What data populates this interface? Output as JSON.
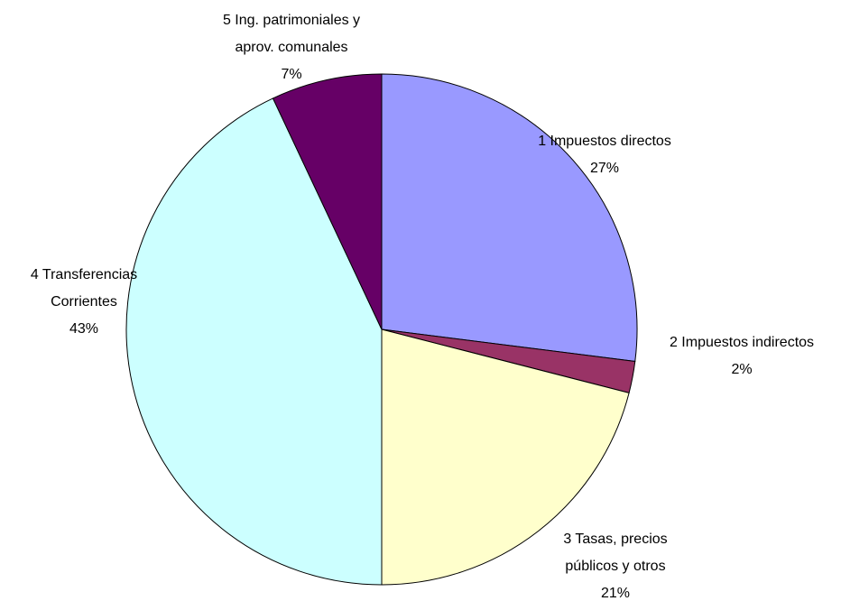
{
  "chart_data": {
    "type": "pie",
    "categories": [
      "1 Impuestos directos",
      "2 Impuestos indirectos",
      "3 Tasas, precios públicos y otros",
      "4 Transferencias Corrientes",
      "5 Ing. patrimoniales y aprov. comunales"
    ],
    "values": [
      27,
      2,
      21,
      43,
      7
    ],
    "value_labels": [
      "27%",
      "2%",
      "21%",
      "43%",
      "7%"
    ],
    "colors": [
      "#9999ff",
      "#993366",
      "#ffffcc",
      "#ccffff",
      "#660066"
    ]
  }
}
